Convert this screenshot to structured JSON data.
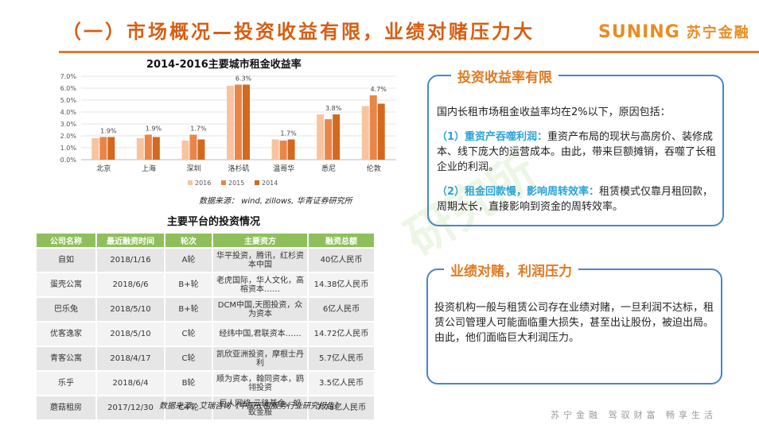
{
  "header": {
    "title": "（一）市场概况—投资收益有限，业绩对赌压力大",
    "brand_en": "SUNING",
    "brand_cn": "苏宁金融"
  },
  "chart_data": {
    "type": "bar",
    "title": "2014-2016主要城市租金收益率",
    "categories": [
      "北京",
      "上海",
      "深圳",
      "洛杉矶",
      "温哥华",
      "悉尼",
      "伦敦"
    ],
    "series": [
      {
        "name": "2016",
        "color": "#f8c4a0",
        "values": [
          1.8,
          1.8,
          1.6,
          6.2,
          1.7,
          3.8,
          4.5
        ]
      },
      {
        "name": "2015",
        "color": "#e8864a",
        "values": [
          1.9,
          2.1,
          2.1,
          6.3,
          1.6,
          3.4,
          5.4
        ]
      },
      {
        "name": "2014",
        "color": "#d2691e",
        "values": [
          1.9,
          1.9,
          1.7,
          6.3,
          1.7,
          3.8,
          4.7
        ]
      }
    ],
    "data_labels": [
      "1.9%",
      "1.9%",
      "1.7%",
      "6.3%",
      "1.7%",
      "3.8%",
      "4.7%"
    ],
    "yticks": [
      "0.0%",
      "1.0%",
      "2.0%",
      "3.0%",
      "4.0%",
      "5.0%",
      "6.0%",
      "7.0%"
    ],
    "ylim": [
      0,
      7
    ],
    "grid": true,
    "legend": "bottom"
  },
  "source1": "数据来源： wind, zillows, 华青证券研究所",
  "table": {
    "title": "主要平台的投资情况",
    "headers": [
      "公司名称",
      "最近融资时间",
      "轮次",
      "主要资方",
      "融资总额"
    ],
    "rows": [
      [
        "自如",
        "2018/1/16",
        "A轮",
        "华平投资，腾讯，红杉资本中国",
        "40亿人民币"
      ],
      [
        "蛋壳公寓",
        "2018/6/6",
        "B+轮",
        "老虎国际，华人文化，高榕资本……",
        "14.38亿人民币"
      ],
      [
        "巴乐兔",
        "2018/5/10",
        "B+轮",
        "DCM中国,天图投资，众为资本",
        "6亿人民币"
      ],
      [
        "优客逸家",
        "2018/5/10",
        "C轮",
        "经纬中国,君联资本……",
        "14.72亿人民币"
      ],
      [
        "青客公寓",
        "2018/4/17",
        "C轮",
        "凯欣亚洲投资，摩根士丹利",
        "5.7亿人民币"
      ],
      [
        "乐乎",
        "2018/6/4",
        "B轮",
        "顺为资本，翰同资本，鸥翎投资",
        "3.5亿人民币"
      ],
      [
        "蘑菇租房",
        "2017/12/30",
        "C+轮",
        "巨人网络,云锋基金，蚂蚁金服",
        "7.78亿人民币"
      ]
    ]
  },
  "source2": "数据来源：艾瑞咨询《中国长租服务行业研究报告》",
  "watermark": "研究所",
  "box1": {
    "heading": "投资收益率有限",
    "intro": "国内长租市场租金收益率均在2%以下，原因包括：",
    "point1_label": "（1）重资产吞噬利润：",
    "point1_text": "重资产布局的现状与高房价、装修成本、线下庞大的运营成本。由此，带来巨额摊销，吞噬了长租企业的利润。",
    "point2_label": "（2）租金回款慢，影响周转效率：",
    "point2_text": "租赁模式仅靠月租回款，周期太长，直接影响到资金的周转效率。"
  },
  "box2": {
    "heading": "业绩对赌，利润压力",
    "text": "投资机构一般与租赁公司存在业绩对赌，一旦利润不达标，租赁公司管理人可能面临重大损失，甚至出让股份，被迫出局。由此，他们面临巨大利润压力。"
  },
  "footer": "苏宁金融 驾驭财富 畅享生活"
}
